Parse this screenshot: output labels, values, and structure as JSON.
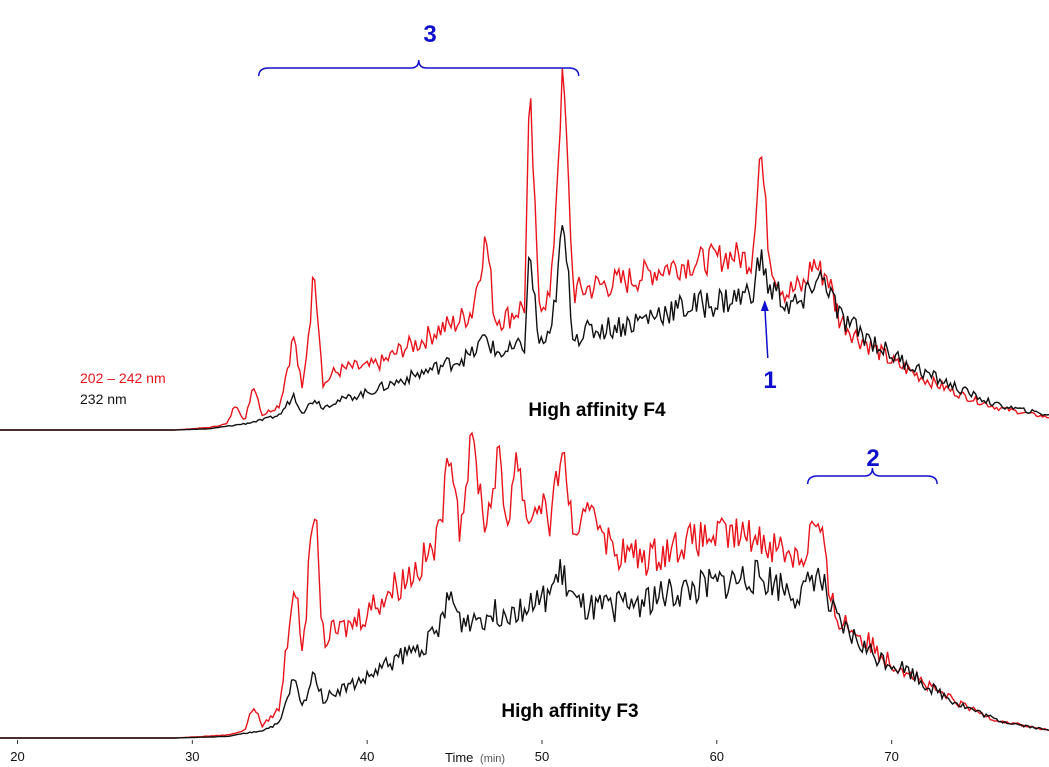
{
  "chart_data": {
    "type": "line",
    "xlabel": "Time",
    "xunit": "(min)",
    "xlim": [
      19,
      79
    ],
    "xticks": [
      20,
      30,
      40,
      50,
      60,
      70
    ],
    "legend_position": "left",
    "grid": false,
    "legend": [
      {
        "label": "202 – 242 nm",
        "color": "#e8141b"
      },
      {
        "label": "232 nm",
        "color": "#111111"
      }
    ],
    "panels": [
      {
        "label": "High affinity  F4",
        "baseline": 0,
        "series": [
          {
            "name": "202 – 242 nm",
            "color": "#e8141b",
            "x": [
              19,
              29,
              31,
              32,
              32.5,
              33,
              33.5,
              34,
              35,
              35.8,
              36.3,
              37,
              37.5,
              38,
              39,
              40,
              41,
              42,
              43,
              44,
              45,
              46,
              46.8,
              47.3,
              48,
              49,
              49.3,
              49.8,
              50.5,
              51.2,
              51.8,
              53,
              55,
              57,
              59,
              61,
              62,
              62.5,
              63,
              63.5,
              64,
              65,
              65.5,
              66,
              66.3,
              67,
              68,
              70,
              72,
              74,
              76,
              79
            ],
            "y": [
              0,
              0,
              0.02,
              0.05,
              0.22,
              0.06,
              0.38,
              0.12,
              0.2,
              0.75,
              0.3,
              1.3,
              0.35,
              0.45,
              0.5,
              0.5,
              0.55,
              0.65,
              0.7,
              0.8,
              0.85,
              0.95,
              1.55,
              0.9,
              0.9,
              1.0,
              2.75,
              1.05,
              1.05,
              2.9,
              1.1,
              1.15,
              1.2,
              1.3,
              1.35,
              1.4,
              1.35,
              2.28,
              1.4,
              1.2,
              1.1,
              1.15,
              1.35,
              1.25,
              1.25,
              0.9,
              0.75,
              0.55,
              0.4,
              0.28,
              0.18,
              0.1
            ]
          },
          {
            "name": "232 nm",
            "color": "#111111",
            "x": [
              19,
              29,
              31,
              32,
              33,
              34,
              35,
              35.8,
              36.3,
              37,
              37.5,
              38,
              39,
              40,
              41,
              42,
              43,
              44,
              45,
              46,
              46.8,
              47.3,
              48,
              49,
              49.3,
              49.8,
              50.5,
              51.2,
              51.8,
              53,
              55,
              57,
              59,
              61,
              62,
              62.5,
              63,
              63.5,
              64,
              65,
              65.5,
              66,
              66.3,
              67,
              68,
              70,
              72,
              74,
              76,
              79
            ],
            "y": [
              0,
              0,
              0.01,
              0.03,
              0.05,
              0.08,
              0.12,
              0.28,
              0.14,
              0.25,
              0.18,
              0.22,
              0.26,
              0.3,
              0.35,
              0.4,
              0.45,
              0.5,
              0.55,
              0.6,
              0.75,
              0.62,
              0.62,
              0.68,
              1.45,
              0.7,
              0.72,
              1.65,
              0.75,
              0.8,
              0.85,
              0.95,
              1.0,
              1.05,
              1.1,
              1.38,
              1.12,
              1.1,
              1.0,
              1.0,
              1.2,
              1.2,
              1.18,
              0.9,
              0.8,
              0.6,
              0.45,
              0.32,
              0.2,
              0.12
            ]
          }
        ]
      },
      {
        "label": "High affinity  F3",
        "baseline": 0,
        "series": [
          {
            "name": "202 – 242 nm",
            "color": "#e8141b",
            "x": [
              19,
              29,
              32,
              33,
              33.5,
              34,
              35,
              35.8,
              36.3,
              37,
              37.5,
              38,
              39,
              40,
              41,
              42,
              43,
              44,
              44.8,
              45.3,
              46,
              46.8,
              47.5,
              48,
              48.5,
              49.2,
              50,
              50.5,
              51.1,
              52,
              52.8,
              54,
              56,
              58,
              60,
              62,
              63,
              64,
              65,
              65.5,
              66,
              66.5,
              67,
              68,
              69,
              70,
              71,
              72,
              74,
              76,
              79
            ],
            "y": [
              0,
              0,
              0.02,
              0.05,
              0.22,
              0.08,
              0.2,
              1.05,
              0.6,
              1.55,
              0.65,
              0.7,
              0.75,
              0.85,
              0.95,
              1.05,
              1.15,
              1.3,
              1.95,
              1.4,
              2.0,
              1.4,
              1.9,
              1.4,
              1.9,
              1.45,
              1.6,
              1.4,
              1.95,
              1.25,
              1.6,
              1.25,
              1.2,
              1.3,
              1.35,
              1.35,
              1.3,
              1.25,
              1.2,
              1.45,
              1.35,
              0.9,
              0.8,
              0.7,
              0.6,
              0.5,
              0.45,
              0.35,
              0.22,
              0.12,
              0.05
            ]
          },
          {
            "name": "232 nm",
            "color": "#111111",
            "x": [
              19,
              29,
              32,
              33,
              34,
              35,
              35.8,
              36.3,
              37,
              37.5,
              38,
              39,
              40,
              41,
              42,
              43,
              44,
              44.8,
              45.3,
              46,
              47,
              48,
              49,
              50,
              51.1,
              52,
              53,
              55,
              57,
              59,
              61,
              62,
              63,
              64,
              65,
              65.5,
              66,
              66.5,
              67,
              68,
              69,
              70,
              71,
              72,
              74,
              76,
              79
            ],
            "y": [
              0,
              0,
              0.01,
              0.03,
              0.05,
              0.1,
              0.4,
              0.2,
              0.45,
              0.25,
              0.3,
              0.35,
              0.4,
              0.48,
              0.55,
              0.6,
              0.7,
              0.95,
              0.78,
              0.8,
              0.82,
              0.85,
              0.88,
              0.9,
              1.1,
              0.88,
              0.85,
              0.9,
              0.95,
              1.0,
              1.05,
              1.08,
              1.05,
              1.0,
              0.95,
              1.1,
              1.05,
              0.85,
              0.75,
              0.65,
              0.55,
              0.5,
              0.45,
              0.35,
              0.22,
              0.12,
              0.05
            ]
          }
        ]
      }
    ],
    "annotations": [
      {
        "label": "3",
        "bracket_x": [
          33.8,
          52.1
        ]
      },
      {
        "label": "2",
        "bracket_x": [
          65.2,
          72.6
        ]
      },
      {
        "label": "1",
        "arrow_to_x": 62.8
      }
    ]
  }
}
